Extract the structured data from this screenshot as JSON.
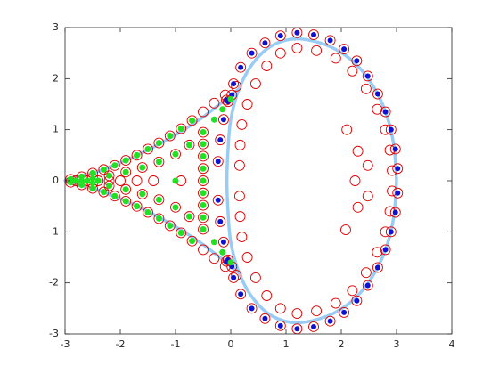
{
  "chart_data": {
    "type": "scatter",
    "xlim": [
      -3,
      4
    ],
    "ylim": [
      -3,
      3
    ],
    "xticks": [
      -3,
      -2,
      -1,
      0,
      1,
      2,
      3,
      4
    ],
    "yticks": [
      -3,
      -2,
      -1,
      0,
      1,
      2,
      3
    ],
    "series": [
      {
        "marker": "line",
        "color": "#99ccf5",
        "x": [
          3.0,
          2.95,
          2.8,
          2.55,
          2.2,
          1.75,
          1.2,
          0.75,
          0.4,
          0.15,
          0.0,
          -0.05,
          -0.07,
          -0.05,
          0.0,
          0.15,
          0.4,
          0.75,
          1.2,
          1.75,
          2.2,
          2.55,
          2.8,
          2.95,
          3.0
        ],
        "y": [
          0,
          0.7,
          1.35,
          1.9,
          2.35,
          2.65,
          2.78,
          2.65,
          2.3,
          1.8,
          1.2,
          0.6,
          0,
          -0.6,
          -1.2,
          -1.8,
          -2.3,
          -2.65,
          -2.78,
          -2.65,
          -2.35,
          -1.9,
          -1.35,
          -0.7,
          0
        ]
      },
      {
        "marker": "line",
        "color": "#99ccf5",
        "x": [
          0.15,
          -0.5,
          -1.0,
          -1.5,
          -2.0,
          -2.5,
          -3,
          -2.5,
          -2.0,
          -1.5,
          -1.0,
          -0.5,
          0.15
        ],
        "y": [
          1.8,
          1.25,
          0.9,
          0.6,
          0.35,
          0.15,
          0,
          -0.15,
          -0.35,
          -0.6,
          -0.9,
          -1.25,
          -1.8
        ]
      },
      {
        "marker": "circle",
        "color": "#e00000",
        "x": [
          2.92,
          2.88,
          2.8,
          2.65,
          2.45,
          2.2,
          1.9,
          1.55,
          1.2,
          0.9,
          0.65,
          0.45,
          0.3,
          0.2,
          0.17,
          0.16,
          2.92,
          2.88,
          2.8,
          2.65,
          2.45,
          2.2,
          1.9,
          1.55,
          1.2,
          0.9,
          0.65,
          0.45,
          0.3,
          0.2,
          0.17,
          0.16
        ],
        "y": [
          0.2,
          0.6,
          1.0,
          1.4,
          1.8,
          2.15,
          2.4,
          2.55,
          2.6,
          2.5,
          2.25,
          1.9,
          1.5,
          1.1,
          0.7,
          0.3,
          -0.2,
          -0.6,
          -1.0,
          -1.4,
          -1.8,
          -2.15,
          -2.4,
          -2.55,
          -2.6,
          -2.5,
          -2.25,
          -1.9,
          -1.5,
          -1.1,
          -0.7,
          -0.3
        ]
      },
      {
        "marker": "circle",
        "color": "#e00000",
        "x": [
          -2.9,
          -2.7,
          -2.5,
          -2.3,
          -2.1,
          -1.9,
          -1.7,
          -1.5,
          -1.3,
          -1.1,
          -0.9,
          -0.7,
          -0.5,
          -0.3,
          -0.1,
          0.1,
          -2.9,
          -2.7,
          -2.5,
          -2.3,
          -2.1,
          -1.9,
          -1.7,
          -1.5,
          -1.3,
          -1.1,
          -0.9,
          -0.7,
          -0.5,
          -0.3,
          -0.1,
          0.1
        ],
        "y": [
          0.03,
          0.08,
          0.15,
          0.22,
          0.3,
          0.4,
          0.5,
          0.62,
          0.74,
          0.88,
          1.02,
          1.18,
          1.35,
          1.52,
          1.68,
          1.85,
          -0.03,
          -0.08,
          -0.15,
          -0.22,
          -0.3,
          -0.4,
          -0.5,
          -0.62,
          -0.74,
          -0.88,
          -1.02,
          -1.18,
          -1.35,
          -1.52,
          -1.68,
          -1.85
        ]
      },
      {
        "marker": "circle",
        "color": "#e00000",
        "x": [
          -2.5,
          -2.2,
          -1.9,
          -1.6,
          -1.3,
          -1.0,
          -0.75,
          -2.5,
          -2.2,
          -1.9,
          -1.6,
          -1.3,
          -1.0,
          -0.75,
          -0.5,
          -0.5,
          -0.5,
          -0.5,
          -0.5,
          -0.5,
          -0.5,
          -0.5,
          -0.5,
          -2.8,
          -2.6,
          -2.4,
          -2.2,
          -2.0,
          -1.7,
          -1.4,
          -0.9,
          2.1,
          2.3,
          2.48,
          2.25,
          2.48,
          2.3,
          2.08
        ],
        "y": [
          0.05,
          0.1,
          0.17,
          0.26,
          0.37,
          0.52,
          0.7,
          -0.05,
          -0.1,
          -0.17,
          -0.26,
          -0.37,
          -0.52,
          -0.7,
          0.95,
          0.72,
          0.48,
          0.24,
          0,
          -0.24,
          -0.48,
          -0.72,
          -0.95,
          0,
          0,
          0,
          0,
          0,
          0,
          0,
          0,
          1.0,
          0.58,
          0.3,
          0,
          -0.3,
          -0.52,
          -0.96
        ]
      },
      {
        "marker": "ring-dot",
        "color": "#e00000",
        "dot_color": "#1010d0",
        "x": [
          3.02,
          2.98,
          2.9,
          2.8,
          2.66,
          2.48,
          2.28,
          2.05,
          1.8,
          1.5,
          1.2,
          0.9,
          0.62,
          0.38,
          0.18,
          0.05,
          -0.05,
          -0.13,
          -0.19,
          -0.23,
          0.02,
          -0.08,
          3.02,
          2.98,
          2.9,
          2.8,
          2.66,
          2.48,
          2.28,
          2.05,
          1.8,
          1.5,
          1.2,
          0.9,
          0.62,
          0.38,
          0.18,
          0.05,
          -0.05,
          -0.13,
          -0.19,
          -0.23,
          0.02,
          -0.08
        ],
        "y": [
          0.24,
          0.62,
          1.0,
          1.35,
          1.7,
          2.05,
          2.35,
          2.58,
          2.75,
          2.86,
          2.9,
          2.84,
          2.7,
          2.5,
          2.22,
          1.9,
          1.55,
          1.2,
          0.8,
          0.38,
          1.68,
          1.58,
          -0.24,
          -0.62,
          -1.0,
          -1.35,
          -1.7,
          -2.05,
          -2.35,
          -2.58,
          -2.75,
          -2.86,
          -2.9,
          -2.84,
          -2.7,
          -2.5,
          -2.22,
          -1.9,
          -1.55,
          -1.2,
          -0.8,
          -0.38,
          -1.68,
          -1.58
        ]
      },
      {
        "marker": "dot",
        "color": "#22e022",
        "x": [
          -2.9,
          -2.7,
          -2.5,
          -2.3,
          -2.1,
          -1.9,
          -1.7,
          -1.5,
          -1.3,
          -1.1,
          -0.9,
          -0.7,
          -2.9,
          -2.7,
          -2.5,
          -2.3,
          -2.1,
          -1.9,
          -1.7,
          -1.5,
          -1.3,
          -1.1,
          -0.9,
          -0.7,
          -2.5,
          -2.2,
          -1.9,
          -1.6,
          -1.3,
          -1.0,
          -0.75,
          -2.5,
          -2.2,
          -1.9,
          -1.6,
          -1.3,
          -1.0,
          -0.75,
          -0.5,
          -0.5,
          -0.5,
          -0.5,
          -0.5,
          -0.5,
          -0.5,
          -0.5,
          -0.5,
          -0.3,
          -0.15,
          0.0,
          -0.3,
          -0.15,
          0.0,
          -2.9,
          -2.8,
          -2.7,
          -2.6,
          -2.4,
          -1.0
        ],
        "y": [
          0.03,
          0.08,
          0.15,
          0.22,
          0.3,
          0.4,
          0.5,
          0.62,
          0.74,
          0.88,
          1.02,
          1.18,
          -0.03,
          -0.08,
          -0.15,
          -0.22,
          -0.3,
          -0.4,
          -0.5,
          -0.62,
          -0.74,
          -0.88,
          -1.02,
          -1.18,
          0.05,
          0.1,
          0.17,
          0.26,
          0.37,
          0.52,
          0.7,
          -0.05,
          -0.1,
          -0.17,
          -0.26,
          -0.37,
          -0.52,
          -0.7,
          0.95,
          0.72,
          0.48,
          0.24,
          0,
          -0.24,
          -0.48,
          -0.72,
          -0.95,
          1.2,
          1.4,
          1.6,
          -1.2,
          -1.4,
          -1.6,
          0,
          0,
          0,
          0,
          0,
          0
        ]
      }
    ]
  }
}
